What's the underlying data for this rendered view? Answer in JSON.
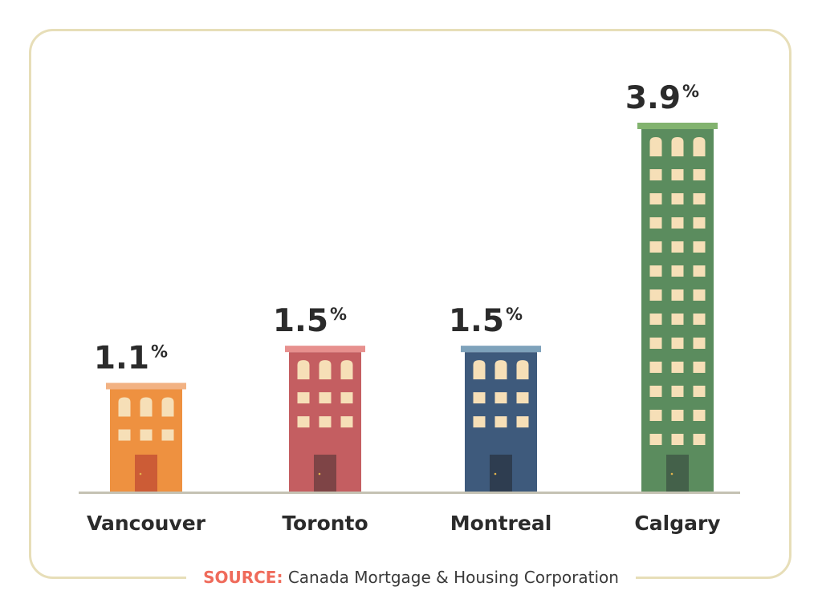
{
  "chart_data": {
    "type": "bar",
    "title": "",
    "xlabel": "",
    "ylabel": "",
    "ylim": [
      0,
      3.9
    ],
    "categories": [
      "Vancouver",
      "Toronto",
      "Montreal",
      "Calgary"
    ],
    "values": [
      1.1,
      1.5,
      1.5,
      3.9
    ],
    "value_labels": [
      "1.1",
      "1.5",
      "1.5",
      "3.9"
    ],
    "unit": "%"
  },
  "colors": {
    "bars": [
      "#ee9140",
      "#c45e61",
      "#3e5a7c",
      "#5b8c5e"
    ],
    "roofs": [
      "#f2b283",
      "#e7908e",
      "#7ea2bb",
      "#82b36f"
    ],
    "doors": [
      "#cc5c36",
      "#7e4446",
      "#2e3d50",
      "#44614a"
    ],
    "window": "#f6dfb7",
    "baseline": "#c5c2b3",
    "frame": "#e7deb8",
    "source_accent": "#ef6b5b"
  },
  "source": {
    "label": "SOURCE:",
    "text": "Canada Mortgage & Housing Corporation"
  }
}
